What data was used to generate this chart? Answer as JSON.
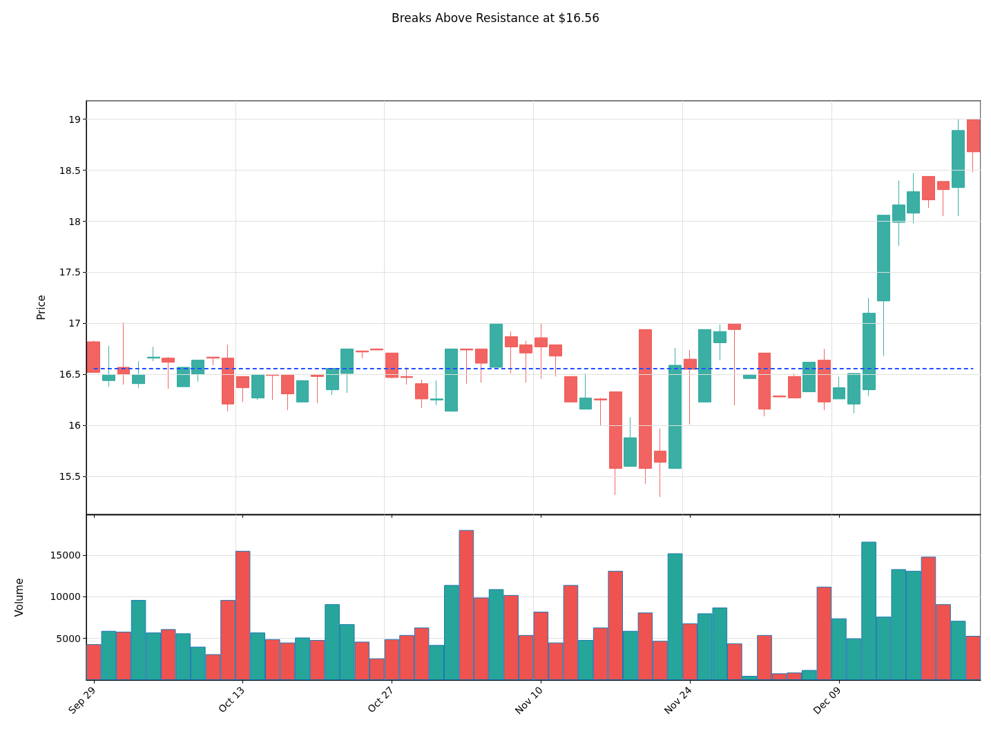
{
  "chart_data": [
    {
      "type": "candlestick",
      "title": "Breaks Above Resistance at $16.56",
      "ylabel": "Price",
      "categories": [
        null,
        null,
        null,
        null,
        null,
        null,
        null,
        null,
        null,
        null,
        null,
        null,
        null,
        null,
        null,
        null,
        null,
        null,
        null,
        null,
        null,
        null,
        null,
        null,
        null,
        null,
        null,
        null,
        null,
        null,
        null,
        null,
        null,
        null,
        null,
        null,
        null,
        null,
        null,
        null,
        null,
        null,
        null,
        null,
        null,
        null,
        null,
        null,
        null,
        null,
        null,
        null,
        null,
        null,
        null,
        null,
        null,
        null,
        null,
        null
      ],
      "ohlc": [
        [
          16.82,
          16.83,
          16.52,
          16.52
        ],
        [
          16.44,
          16.78,
          16.38,
          16.5
        ],
        [
          16.57,
          17.01,
          16.4,
          16.5
        ],
        [
          16.41,
          16.63,
          16.37,
          16.5
        ],
        [
          16.66,
          16.77,
          16.63,
          16.67
        ],
        [
          16.66,
          16.67,
          16.36,
          16.62
        ],
        [
          16.38,
          16.57,
          16.38,
          16.57
        ],
        [
          16.5,
          16.64,
          16.43,
          16.64
        ],
        [
          16.67,
          16.67,
          16.59,
          16.66
        ],
        [
          16.66,
          16.79,
          16.14,
          16.21
        ],
        [
          16.48,
          16.48,
          16.23,
          16.37
        ],
        [
          16.27,
          16.5,
          16.25,
          16.5
        ],
        [
          16.5,
          16.5,
          16.25,
          16.49
        ],
        [
          16.5,
          16.5,
          16.15,
          16.31
        ],
        [
          16.23,
          16.44,
          16.23,
          16.44
        ],
        [
          16.5,
          16.5,
          16.22,
          16.48
        ],
        [
          16.35,
          16.56,
          16.3,
          16.56
        ],
        [
          16.51,
          16.75,
          16.32,
          16.75
        ],
        [
          16.73,
          16.73,
          16.66,
          16.72
        ],
        [
          16.75,
          16.75,
          16.74,
          16.74
        ],
        [
          16.71,
          16.71,
          16.46,
          16.47
        ],
        [
          16.48,
          16.57,
          16.4,
          16.47
        ],
        [
          16.41,
          16.45,
          16.17,
          16.26
        ],
        [
          16.25,
          16.44,
          16.2,
          16.26
        ],
        [
          16.14,
          16.75,
          16.14,
          16.75
        ],
        [
          16.75,
          16.75,
          16.41,
          16.74
        ],
        [
          16.75,
          16.75,
          16.42,
          16.61
        ],
        [
          16.57,
          17.0,
          16.57,
          17.0
        ],
        [
          16.87,
          16.92,
          16.51,
          16.77
        ],
        [
          16.79,
          16.83,
          16.42,
          16.71
        ],
        [
          16.86,
          17.0,
          16.46,
          16.77
        ],
        [
          16.79,
          16.79,
          16.48,
          16.68
        ],
        [
          16.48,
          16.48,
          16.23,
          16.23
        ],
        [
          16.16,
          16.51,
          16.16,
          16.27
        ],
        [
          16.26,
          16.27,
          16.0,
          16.25
        ],
        [
          16.33,
          16.33,
          15.32,
          15.58
        ],
        [
          15.6,
          16.08,
          15.6,
          15.88
        ],
        [
          16.94,
          16.94,
          15.43,
          15.58
        ],
        [
          15.75,
          15.97,
          15.3,
          15.64
        ],
        [
          15.58,
          16.76,
          15.58,
          16.59
        ],
        [
          16.65,
          16.74,
          16.01,
          16.55
        ],
        [
          16.23,
          16.94,
          16.23,
          16.94
        ],
        [
          16.81,
          16.99,
          16.64,
          16.92
        ],
        [
          17.0,
          17.0,
          16.2,
          16.94
        ],
        [
          16.46,
          16.5,
          16.46,
          16.5
        ],
        [
          16.71,
          16.71,
          16.09,
          16.16
        ],
        [
          16.29,
          16.29,
          16.28,
          16.28
        ],
        [
          16.48,
          16.51,
          16.27,
          16.27
        ],
        [
          16.33,
          16.62,
          16.33,
          16.62
        ],
        [
          16.64,
          16.75,
          16.15,
          16.23
        ],
        [
          16.26,
          16.48,
          16.26,
          16.37
        ],
        [
          16.21,
          16.51,
          16.12,
          16.51
        ],
        [
          16.35,
          17.25,
          16.29,
          17.1
        ],
        [
          17.22,
          18.06,
          16.68,
          18.06
        ],
        [
          17.99,
          18.4,
          17.76,
          18.16
        ],
        [
          18.08,
          18.47,
          17.98,
          18.29
        ],
        [
          18.44,
          18.44,
          18.13,
          18.21
        ],
        [
          18.39,
          18.39,
          18.05,
          18.31
        ],
        [
          18.33,
          19.0,
          18.05,
          18.89
        ],
        [
          19.0,
          19.0,
          18.48,
          18.68
        ]
      ],
      "colors": [
        "#ef5350",
        "#26a69a",
        "#ef5350",
        "#26a69a",
        "#26a69a",
        "#ef5350",
        "#26a69a",
        "#26a69a",
        "#ef5350",
        "#ef5350",
        "#ef5350",
        "#26a69a",
        "#ef5350",
        "#ef5350",
        "#26a69a",
        "#ef5350",
        "#26a69a",
        "#26a69a",
        "#ef5350",
        "#ef5350",
        "#ef5350",
        "#ef5350",
        "#ef5350",
        "#26a69a",
        "#26a69a",
        "#ef5350",
        "#ef5350",
        "#26a69a",
        "#ef5350",
        "#ef5350",
        "#ef5350",
        "#ef5350",
        "#ef5350",
        "#26a69a",
        "#ef5350",
        "#ef5350",
        "#26a69a",
        "#ef5350",
        "#ef5350",
        "#26a69a",
        "#ef5350",
        "#26a69a",
        "#26a69a",
        "#ef5350",
        "#26a69a",
        "#ef5350",
        "#ef5350",
        "#ef5350",
        "#26a69a",
        "#ef5350",
        "#26a69a",
        "#26a69a",
        "#26a69a",
        "#26a69a",
        "#26a69a",
        "#26a69a",
        "#ef5350",
        "#ef5350",
        "#26a69a",
        "#ef5350"
      ],
      "ylim": [
        15.13,
        19.18
      ],
      "yticks": [
        15.5,
        16.0,
        16.5,
        17.0,
        17.5,
        18.0,
        18.5,
        19.0
      ],
      "ref_lines": [
        {
          "axis": "y",
          "value": 16.56,
          "color": "#1f4fff",
          "line_style": "dashed"
        }
      ],
      "grid": true,
      "tick_labels": "y"
    },
    {
      "type": "bar",
      "ylabel": "Volume",
      "categories": [
        "Sep 29",
        null,
        null,
        null,
        null,
        null,
        null,
        null,
        null,
        null,
        "Oct 13",
        null,
        null,
        null,
        null,
        null,
        null,
        null,
        null,
        null,
        "Oct 27",
        null,
        null,
        null,
        null,
        null,
        null,
        null,
        null,
        null,
        "Nov 10",
        null,
        null,
        null,
        null,
        null,
        null,
        null,
        null,
        null,
        "Nov 24",
        null,
        null,
        null,
        null,
        null,
        null,
        null,
        null,
        null,
        "Dec 09",
        null,
        null,
        null,
        null,
        null,
        null,
        null,
        null,
        null
      ],
      "values": [
        4300,
        5900,
        5800,
        9600,
        5700,
        6100,
        5600,
        4000,
        3100,
        9600,
        15500,
        5700,
        4900,
        4500,
        5100,
        4800,
        9100,
        6700,
        4600,
        2600,
        4900,
        5400,
        6300,
        4200,
        11400,
        18000,
        9900,
        10900,
        10200,
        5400,
        8200,
        4500,
        11400,
        4800,
        6300,
        13100,
        5900,
        8100,
        4700,
        15200,
        6800,
        8000,
        8700,
        4400,
        500,
        5400,
        800,
        900,
        1200,
        11200,
        7400,
        5000,
        16600,
        7600,
        13300,
        13100,
        14800,
        9100,
        7100,
        5300
      ],
      "colors": [
        "#ef5350",
        "#26a69a",
        "#ef5350",
        "#26a69a",
        "#26a69a",
        "#ef5350",
        "#26a69a",
        "#26a69a",
        "#ef5350",
        "#ef5350",
        "#ef5350",
        "#26a69a",
        "#ef5350",
        "#ef5350",
        "#26a69a",
        "#ef5350",
        "#26a69a",
        "#26a69a",
        "#ef5350",
        "#ef5350",
        "#ef5350",
        "#ef5350",
        "#ef5350",
        "#26a69a",
        "#26a69a",
        "#ef5350",
        "#ef5350",
        "#26a69a",
        "#ef5350",
        "#ef5350",
        "#ef5350",
        "#ef5350",
        "#ef5350",
        "#26a69a",
        "#ef5350",
        "#ef5350",
        "#26a69a",
        "#ef5350",
        "#ef5350",
        "#26a69a",
        "#ef5350",
        "#26a69a",
        "#26a69a",
        "#ef5350",
        "#26a69a",
        "#ef5350",
        "#ef5350",
        "#ef5350",
        "#26a69a",
        "#ef5350",
        "#26a69a",
        "#26a69a",
        "#26a69a",
        "#26a69a",
        "#26a69a",
        "#26a69a",
        "#ef5350",
        "#ef5350",
        "#26a69a",
        "#ef5350"
      ],
      "ylim": [
        0,
        19800
      ],
      "yticks": [
        5000,
        10000,
        15000
      ],
      "grid": true
    }
  ]
}
